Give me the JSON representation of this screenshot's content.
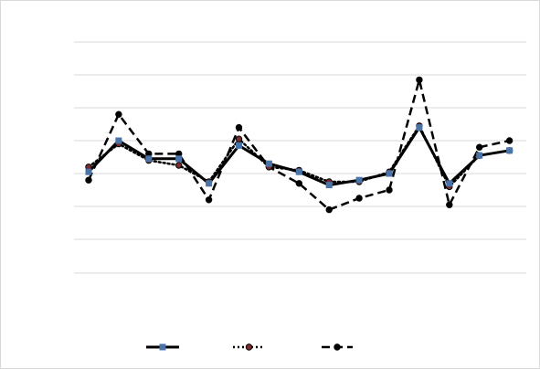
{
  "chart_data": {
    "type": "line",
    "title": "",
    "xlabel": "",
    "ylabel": "",
    "x": [
      1,
      2,
      3,
      4,
      5,
      6,
      7,
      8,
      9,
      10,
      11,
      12,
      13,
      14,
      15
    ],
    "ylim": [
      -4,
      3.5
    ],
    "grid": true,
    "legend_position": "bottom",
    "series": [
      {
        "name": "",
        "style": "solid",
        "marker_color": "#4a74a8",
        "values": [
          0.05,
          1.0,
          0.45,
          0.45,
          -0.3,
          0.85,
          0.3,
          0.05,
          -0.35,
          -0.2,
          0.0,
          1.4,
          -0.3,
          0.55,
          0.7
        ]
      },
      {
        "name": "",
        "style": "dotted",
        "marker_color": "#7b2d2d",
        "values": [
          0.2,
          0.9,
          0.4,
          0.25,
          -0.25,
          1.05,
          0.2,
          0.1,
          -0.25,
          -0.25,
          0.05,
          1.45,
          -0.4,
          0.55,
          0.7
        ]
      },
      {
        "name": "",
        "style": "dashed",
        "marker_color": "#000000",
        "values": [
          -0.2,
          1.8,
          0.6,
          0.6,
          -0.8,
          1.4,
          0.2,
          -0.3,
          -1.1,
          -0.75,
          -0.5,
          2.85,
          -0.95,
          0.8,
          1.0
        ]
      }
    ]
  }
}
